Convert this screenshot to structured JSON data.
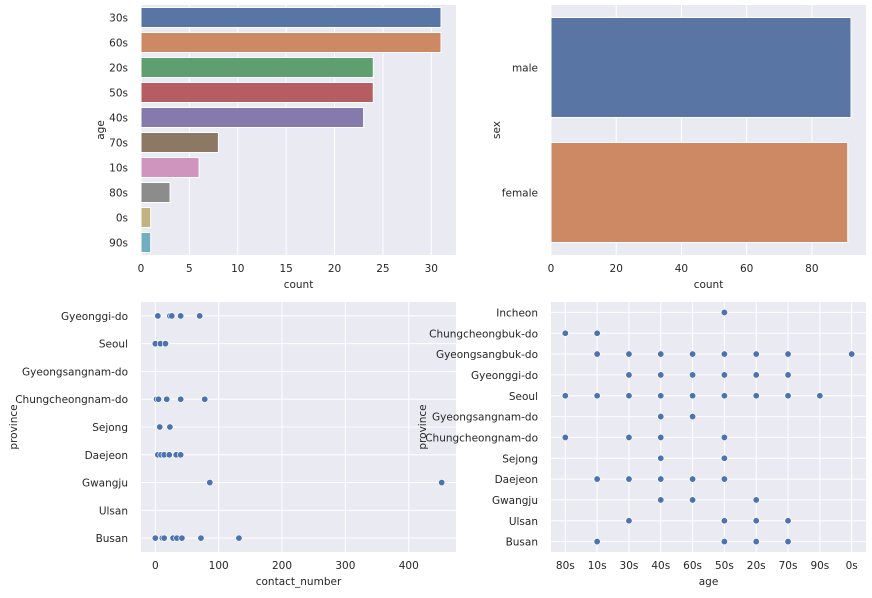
{
  "colors": {
    "axes_bg": "#EAEAF2",
    "grid": "#FFFFFF",
    "point": "#4C72B0"
  },
  "chart_data": [
    {
      "type": "bar",
      "orientation": "horizontal",
      "xlabel": "count",
      "ylabel": "age",
      "categories": [
        "30s",
        "60s",
        "20s",
        "50s",
        "40s",
        "70s",
        "10s",
        "80s",
        "0s",
        "90s"
      ],
      "values": [
        31,
        31,
        24,
        24,
        23,
        8,
        6,
        3,
        1,
        1
      ],
      "colors": [
        "#5975A4",
        "#CC8963",
        "#5F9E6E",
        "#B55D60",
        "#857AAB",
        "#8D7866",
        "#D095BF",
        "#8C8C8C",
        "#C1B37F",
        "#71AEC0"
      ],
      "xlim": [
        0,
        32.55
      ],
      "xticks": [
        0,
        5,
        10,
        15,
        20,
        25,
        30
      ],
      "grid": true
    },
    {
      "type": "bar",
      "orientation": "horizontal",
      "xlabel": "count",
      "ylabel": "sex",
      "categories": [
        "male",
        "female"
      ],
      "values": [
        92,
        91
      ],
      "colors": [
        "#5975A4",
        "#CC8963"
      ],
      "xlim": [
        0,
        96.6
      ],
      "xticks": [
        0,
        20,
        40,
        60,
        80
      ],
      "grid": true
    },
    {
      "type": "scatter",
      "xlabel": "contact_number",
      "ylabel": "province",
      "categories": [
        "Gyeonggi-do",
        "Seoul",
        "Gyeongsangnam-do",
        "Chungcheongnam-do",
        "Sejong",
        "Daejeon",
        "Gwangju",
        "Ulsan",
        "Busan"
      ],
      "points": [
        {
          "province": "Gyeonggi-do",
          "x": [
            4,
            23,
            26,
            40,
            70
          ]
        },
        {
          "province": "Seoul",
          "x": [
            0,
            8,
            16
          ]
        },
        {
          "province": "Gyeongsangnam-do",
          "x": []
        },
        {
          "province": "Chungcheongnam-do",
          "x": [
            2,
            5,
            18,
            40,
            78
          ]
        },
        {
          "province": "Sejong",
          "x": [
            7,
            23
          ]
        },
        {
          "province": "Daejeon",
          "x": [
            4,
            9,
            14,
            22,
            33,
            40
          ]
        },
        {
          "province": "Gwangju",
          "x": [
            86,
            452
          ]
        },
        {
          "province": "Ulsan",
          "x": []
        },
        {
          "province": "Busan",
          "x": [
            0,
            11,
            14,
            28,
            34,
            42,
            72,
            132
          ]
        }
      ],
      "xlim": [
        -22.6,
        474.6
      ],
      "xticks": [
        0,
        100,
        200,
        300,
        400
      ],
      "grid": true
    },
    {
      "type": "scatter",
      "xlabel": "age",
      "ylabel": "province",
      "x_categories": [
        "80s",
        "10s",
        "30s",
        "40s",
        "60s",
        "50s",
        "20s",
        "70s",
        "90s",
        "0s"
      ],
      "categories": [
        "Incheon",
        "Chungcheongbuk-do",
        "Gyeongsangbuk-do",
        "Gyeonggi-do",
        "Seoul",
        "Gyeongsangnam-do",
        "Chungcheongnam-do",
        "Sejong",
        "Daejeon",
        "Gwangju",
        "Ulsan",
        "Busan"
      ],
      "points": [
        {
          "province": "Incheon",
          "x": [
            "50s"
          ]
        },
        {
          "province": "Chungcheongbuk-do",
          "x": [
            "80s",
            "10s"
          ]
        },
        {
          "province": "Gyeongsangbuk-do",
          "x": [
            "10s",
            "30s",
            "40s",
            "60s",
            "50s",
            "20s",
            "70s",
            "0s"
          ]
        },
        {
          "province": "Gyeonggi-do",
          "x": [
            "30s",
            "40s",
            "60s",
            "50s",
            "20s",
            "70s"
          ]
        },
        {
          "province": "Seoul",
          "x": [
            "80s",
            "10s",
            "30s",
            "40s",
            "60s",
            "50s",
            "20s",
            "70s",
            "90s"
          ]
        },
        {
          "province": "Gyeongsangnam-do",
          "x": [
            "40s",
            "60s"
          ]
        },
        {
          "province": "Chungcheongnam-do",
          "x": [
            "80s",
            "30s",
            "40s",
            "50s"
          ]
        },
        {
          "province": "Sejong",
          "x": [
            "40s",
            "50s"
          ]
        },
        {
          "province": "Daejeon",
          "x": [
            "10s",
            "30s",
            "40s",
            "60s",
            "50s"
          ]
        },
        {
          "province": "Gwangju",
          "x": [
            "40s",
            "60s",
            "20s"
          ]
        },
        {
          "province": "Ulsan",
          "x": [
            "30s",
            "50s",
            "20s",
            "70s"
          ]
        },
        {
          "province": "Busan",
          "x": [
            "10s",
            "50s",
            "20s",
            "70s"
          ]
        }
      ],
      "grid": true
    }
  ]
}
